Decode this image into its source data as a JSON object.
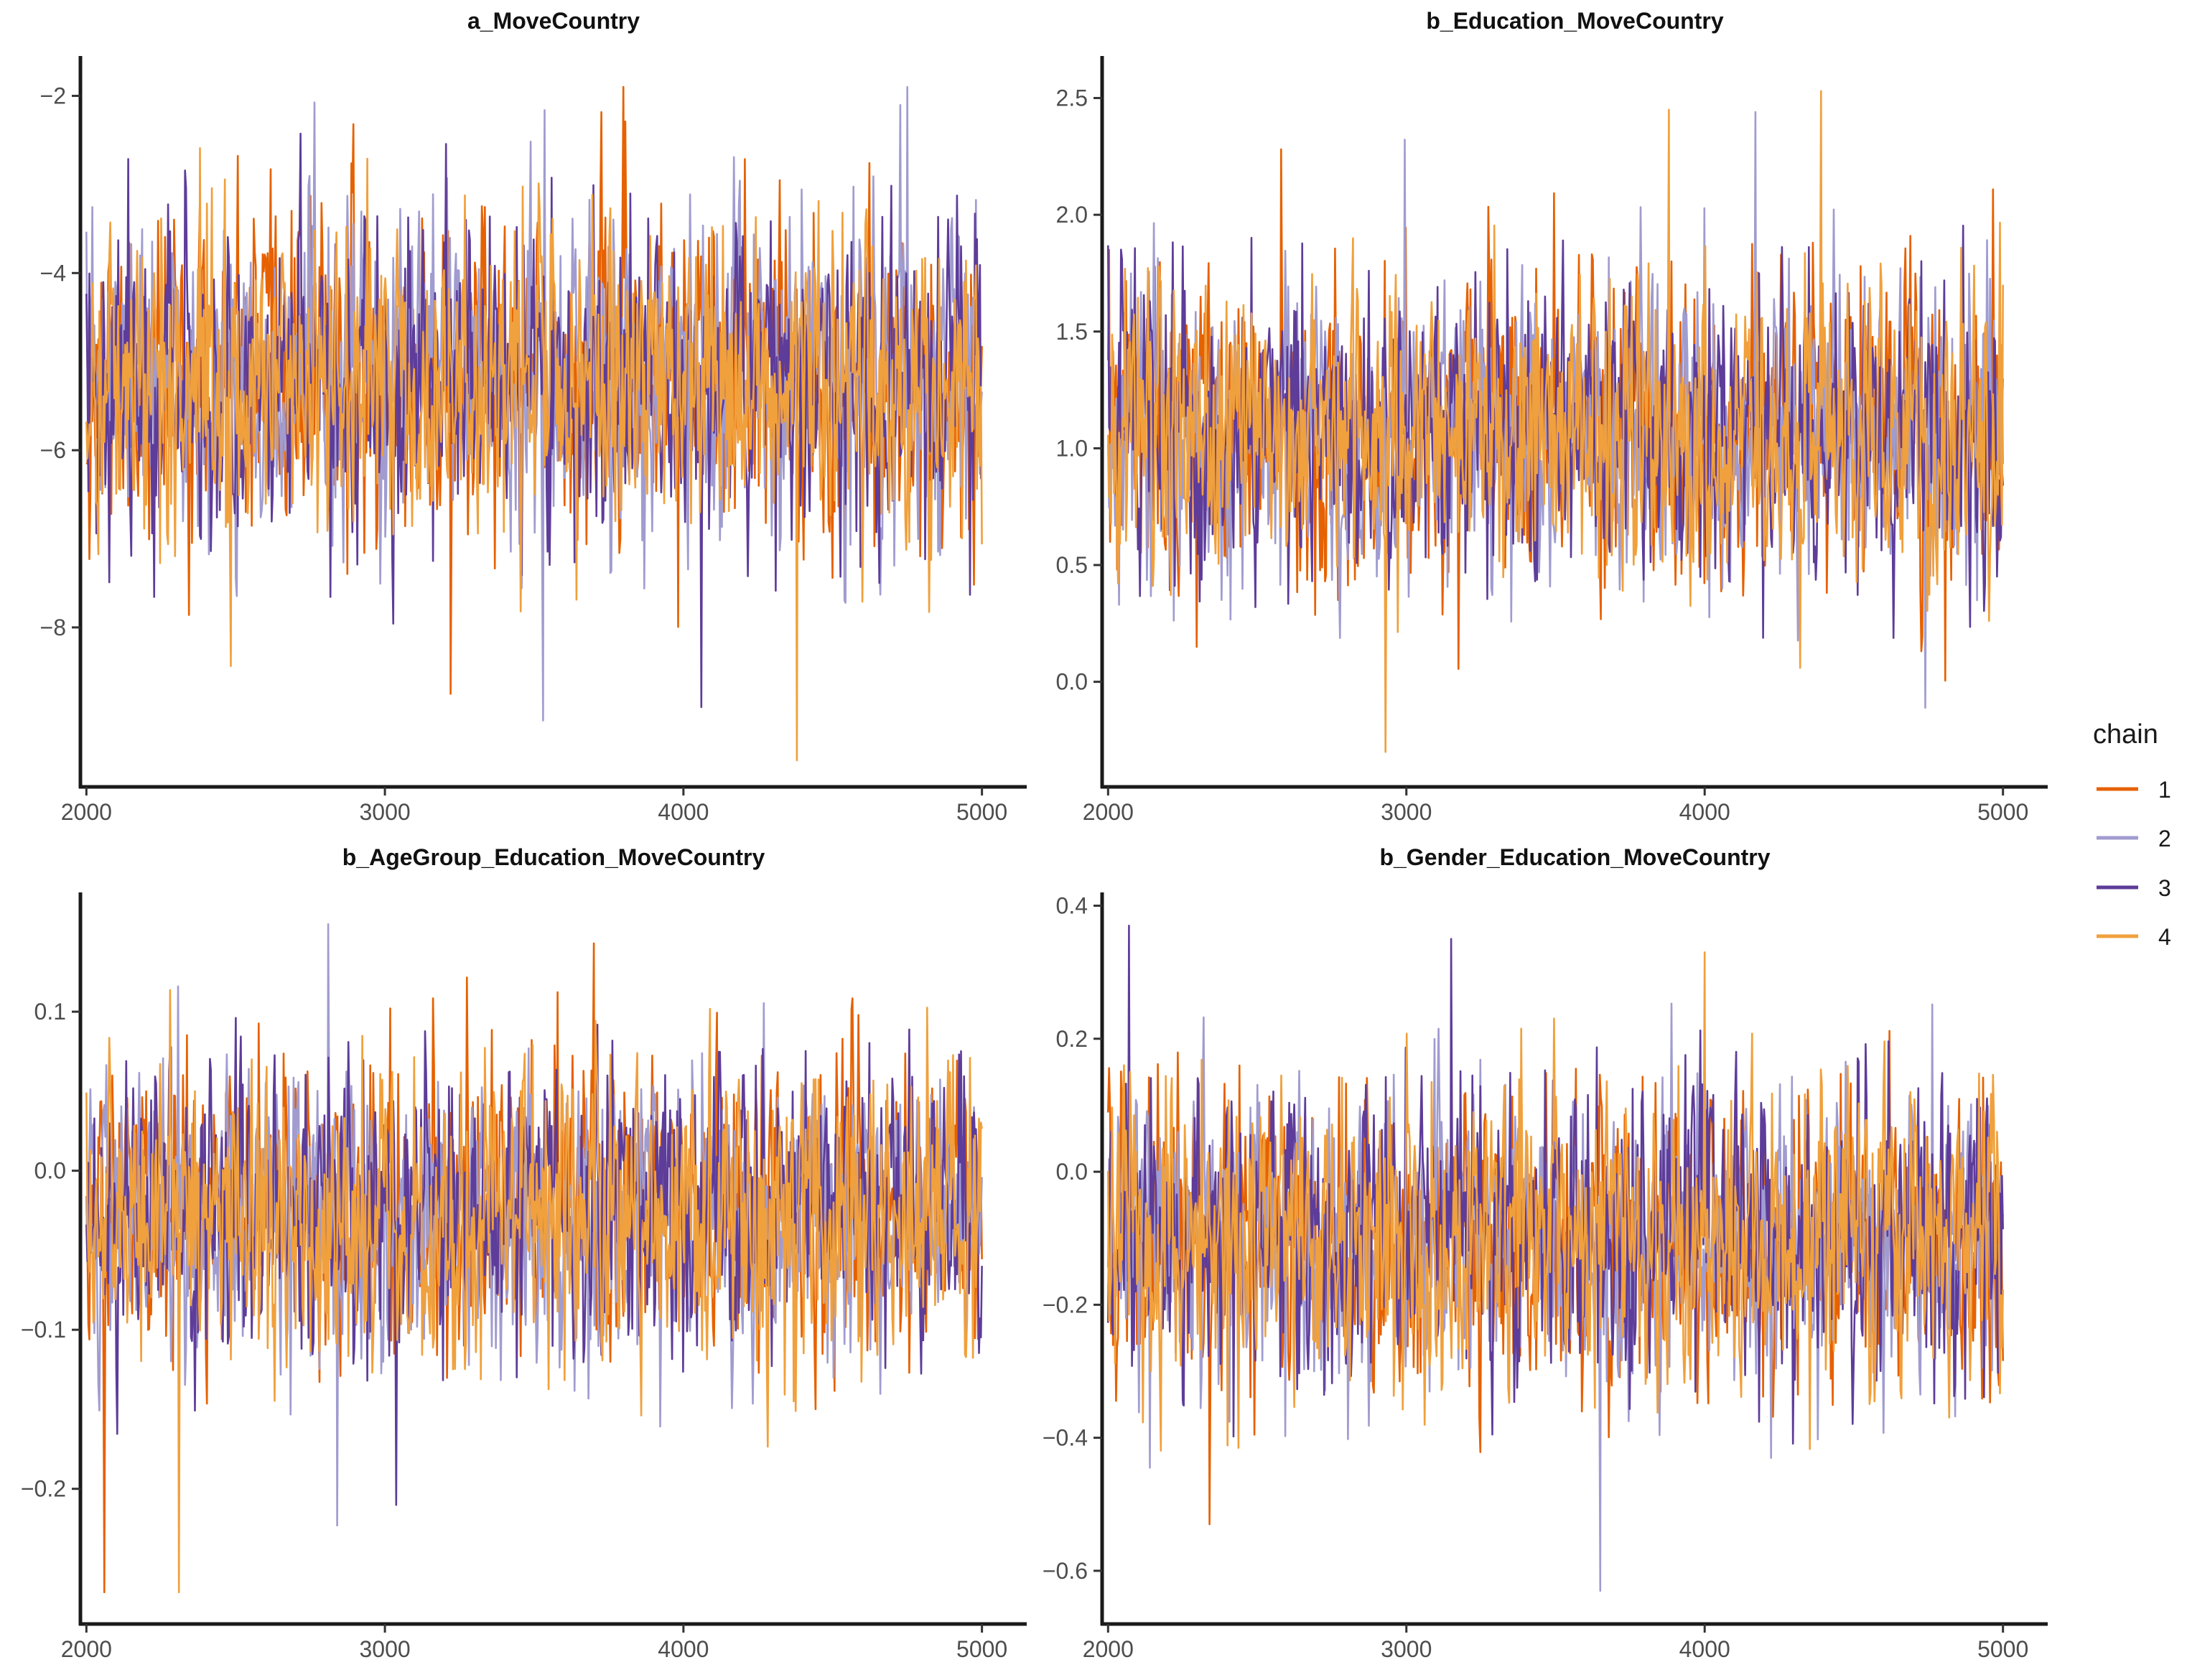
{
  "chart_data": [
    {
      "type": "line",
      "title": "a_MoveCountry",
      "xlabel": "",
      "ylabel": "",
      "xlim": [
        1980,
        5150
      ],
      "ylim": [
        -9.8,
        -1.55
      ],
      "xticks": [
        2000,
        3000,
        4000,
        5000
      ],
      "xtick_labels": [
        "2000",
        "3000",
        "4000",
        "5000"
      ],
      "yticks": [
        -2,
        -4,
        -6,
        -8
      ],
      "ytick_labels": [
        "−2",
        "−4",
        "−6",
        "−8"
      ],
      "x_range": [
        2000,
        5000
      ],
      "center": -5.2,
      "spread": 0.8,
      "notable_extremes": [
        {
          "chain": "2",
          "x": 4750,
          "y": -1.9
        },
        {
          "chain": "4",
          "x": 4380,
          "y": -9.5
        },
        {
          "chain": "2",
          "x": 3530,
          "y": -9.05
        },
        {
          "chain": "3",
          "x": 4060,
          "y": -8.9
        },
        {
          "chain": "1",
          "x": 3220,
          "y": -8.75
        }
      ],
      "series": [
        {
          "name": "1",
          "seed": 11
        },
        {
          "name": "2",
          "seed": 23
        },
        {
          "name": "3",
          "seed": 37
        },
        {
          "name": "4",
          "seed": 41
        }
      ]
    },
    {
      "type": "line",
      "title": "b_Education_MoveCountry",
      "xlabel": "",
      "ylabel": "",
      "xlim": [
        1980,
        5150
      ],
      "ylim": [
        -0.45,
        2.68
      ],
      "xticks": [
        2000,
        3000,
        4000,
        5000
      ],
      "xtick_labels": [
        "2000",
        "3000",
        "4000",
        "5000"
      ],
      "yticks": [
        2.5,
        2.0,
        1.5,
        1.0,
        0.5,
        0.0
      ],
      "ytick_labels": [
        "2.5",
        "2.0",
        "1.5",
        "1.0",
        "0.5",
        "0.0"
      ],
      "x_range": [
        2000,
        5000
      ],
      "center": 1.07,
      "spread": 0.29,
      "notable_extremes": [
        {
          "chain": "4",
          "x": 4390,
          "y": 2.53
        },
        {
          "chain": "2",
          "x": 4170,
          "y": 2.44
        },
        {
          "chain": "4",
          "x": 3880,
          "y": 2.45
        },
        {
          "chain": "1",
          "x": 2580,
          "y": 2.28
        },
        {
          "chain": "4",
          "x": 2930,
          "y": -0.3
        },
        {
          "chain": "4",
          "x": 4320,
          "y": 0.06
        }
      ],
      "series": [
        {
          "name": "1",
          "seed": 53
        },
        {
          "name": "2",
          "seed": 67
        },
        {
          "name": "3",
          "seed": 79
        },
        {
          "name": "4",
          "seed": 83
        }
      ]
    },
    {
      "type": "line",
      "title": "b_AgeGroup_Education_MoveCountry",
      "xlabel": "",
      "ylabel": "",
      "xlim": [
        1980,
        5150
      ],
      "ylim": [
        -0.285,
        0.175
      ],
      "xticks": [
        2000,
        3000,
        4000,
        5000
      ],
      "xtick_labels": [
        "2000",
        "3000",
        "4000",
        "5000"
      ],
      "yticks": [
        0.1,
        0.0,
        -0.1,
        -0.2
      ],
      "ytick_labels": [
        "0.1",
        "0.0",
        "−0.1",
        "−0.2"
      ],
      "x_range": [
        2000,
        5000
      ],
      "center": -0.025,
      "spread": 0.042,
      "notable_extremes": [
        {
          "chain": "2",
          "x": 2810,
          "y": 0.155
        },
        {
          "chain": "1",
          "x": 3700,
          "y": 0.143
        },
        {
          "chain": "1",
          "x": 2060,
          "y": -0.265
        },
        {
          "chain": "4",
          "x": 2310,
          "y": -0.265
        },
        {
          "chain": "2",
          "x": 2840,
          "y": -0.223
        }
      ],
      "series": [
        {
          "name": "1",
          "seed": 97
        },
        {
          "name": "2",
          "seed": 101
        },
        {
          "name": "3",
          "seed": 113
        },
        {
          "name": "4",
          "seed": 127
        }
      ]
    },
    {
      "type": "line",
      "title": "b_Gender_Education_MoveCountry",
      "xlabel": "",
      "ylabel": "",
      "xlim": [
        1980,
        5150
      ],
      "ylim": [
        -0.68,
        0.42
      ],
      "xticks": [
        2000,
        3000,
        4000,
        5000
      ],
      "xtick_labels": [
        "2000",
        "3000",
        "4000",
        "5000"
      ],
      "yticks": [
        0.4,
        0.2,
        0.0,
        -0.2,
        -0.4,
        -0.6
      ],
      "ytick_labels": [
        "0.4",
        "0.2",
        "0.0",
        "−0.2",
        "−0.4",
        "−0.6"
      ],
      "x_range": [
        2000,
        5000
      ],
      "center": -0.1,
      "spread": 0.1,
      "notable_extremes": [
        {
          "chain": "3",
          "x": 2070,
          "y": 0.37
        },
        {
          "chain": "3",
          "x": 3150,
          "y": 0.35
        },
        {
          "chain": "4",
          "x": 4000,
          "y": 0.33
        },
        {
          "chain": "2",
          "x": 3650,
          "y": -0.63
        },
        {
          "chain": "1",
          "x": 2340,
          "y": -0.53
        }
      ],
      "series": [
        {
          "name": "1",
          "seed": 131
        },
        {
          "name": "2",
          "seed": 137
        },
        {
          "name": "3",
          "seed": 149
        },
        {
          "name": "4",
          "seed": 151
        }
      ]
    }
  ],
  "legend": {
    "title": "chain",
    "items": [
      {
        "label": "1",
        "color": "#e66101"
      },
      {
        "label": "2",
        "color": "#a09cd0"
      },
      {
        "label": "3",
        "color": "#5e3c99"
      },
      {
        "label": "4",
        "color": "#f0a03c"
      }
    ]
  },
  "colors": {
    "1": "#e66101",
    "2": "#a09cd0",
    "3": "#5e3c99",
    "4": "#f0a03c"
  }
}
